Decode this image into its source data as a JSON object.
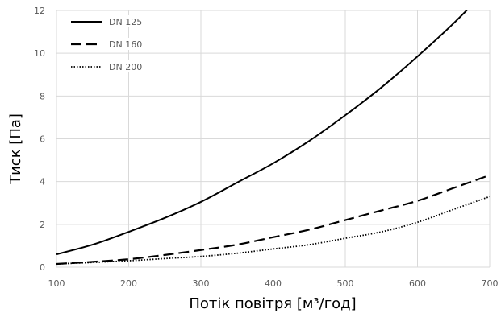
{
  "chart_data": {
    "type": "line",
    "xlabel": "Потік повітря  [м³/год]",
    "ylabel": "Тиск [Па]",
    "xlim": [
      100,
      700
    ],
    "ylim": [
      0,
      12
    ],
    "x_ticks": [
      100,
      200,
      300,
      400,
      500,
      600,
      700
    ],
    "y_ticks": [
      0,
      2,
      4,
      6,
      8,
      10,
      12
    ],
    "grid": true,
    "legend_position": "top-left",
    "x": [
      100,
      150,
      200,
      250,
      300,
      350,
      400,
      450,
      500,
      550,
      600,
      650,
      700
    ],
    "series": [
      {
        "name": "DN 125",
        "style": "solid",
        "color": "#000000",
        "values": [
          0.6,
          1.05,
          1.65,
          2.3,
          3.05,
          3.95,
          4.85,
          5.9,
          7.1,
          8.4,
          9.85,
          11.4,
          13.1
        ]
      },
      {
        "name": "DN 160",
        "style": "dashed",
        "color": "#000000",
        "values": [
          0.15,
          0.25,
          0.37,
          0.57,
          0.8,
          1.05,
          1.4,
          1.75,
          2.2,
          2.65,
          3.1,
          3.7,
          4.3
        ]
      },
      {
        "name": "DN 200",
        "style": "dotted",
        "color": "#000000",
        "values": [
          0.15,
          0.22,
          0.3,
          0.4,
          0.5,
          0.65,
          0.85,
          1.05,
          1.35,
          1.65,
          2.1,
          2.7,
          3.3
        ]
      }
    ]
  }
}
